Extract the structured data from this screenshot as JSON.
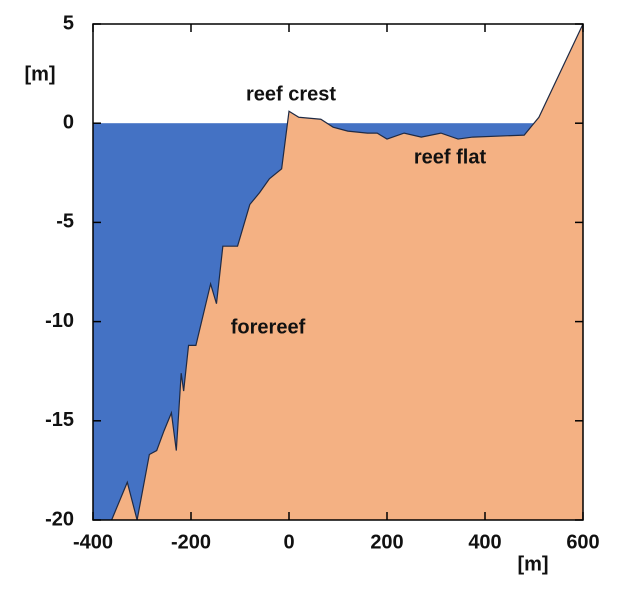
{
  "chart_data": {
    "type": "area",
    "x": [
      -362,
      -330,
      -310,
      -285,
      -270,
      -255,
      -240,
      -230,
      -220,
      -215,
      -205,
      -190,
      -160,
      -148,
      -135,
      -105,
      -80,
      -60,
      -40,
      -15,
      0,
      20,
      65,
      90,
      120,
      160,
      180,
      200,
      235,
      270,
      310,
      345,
      375,
      480,
      510,
      600
    ],
    "values": [
      -20,
      -18.1,
      -20,
      -16.7,
      -16.5,
      -15.5,
      -14.6,
      -16.5,
      -12.6,
      -13.5,
      -11.2,
      -11.2,
      -8.1,
      -9.1,
      -6.2,
      -6.2,
      -4.1,
      -3.5,
      -2.8,
      -2.3,
      0.6,
      0.3,
      0.2,
      -0.2,
      -0.4,
      -0.5,
      -0.5,
      -0.8,
      -0.5,
      -0.7,
      -0.5,
      -0.8,
      -0.7,
      -0.6,
      0.3,
      5
    ],
    "color": "#f4b183",
    "water_color": "#4472c4",
    "water_level": 0,
    "xlim": [
      -400,
      600
    ],
    "ylim": [
      -20,
      5
    ],
    "xticks": [
      -400,
      -200,
      0,
      200,
      400,
      600
    ],
    "yticks": [
      -20,
      -15,
      -10,
      -5,
      0,
      5
    ],
    "x_label": "[m]",
    "y_label": "[m]",
    "annotations": [
      "reef crest",
      "reef flat",
      "forereef"
    ]
  }
}
